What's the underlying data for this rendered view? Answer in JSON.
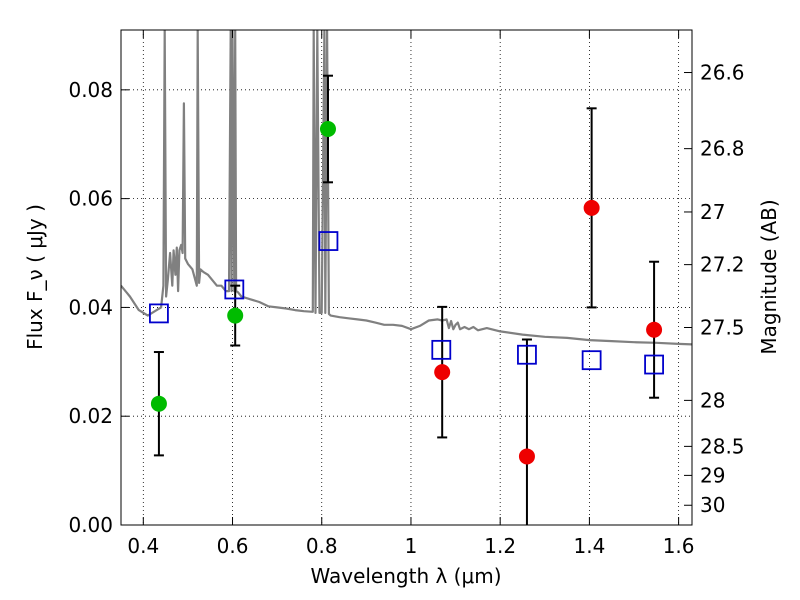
{
  "chart_data": {
    "type": "scatter",
    "xlabel": "Wavelength  λ (μm)",
    "ylabel": "Flux  F_ν  ( μJy )",
    "y2label": "Magnitude (AB)",
    "xlim": [
      0.35,
      1.63
    ],
    "ylim": [
      0.0,
      0.091
    ],
    "grid": true,
    "x_ticks": [
      0.4,
      0.6,
      0.8,
      1.0,
      1.2,
      1.4,
      1.6
    ],
    "x_tick_labels": [
      "0.4",
      "0.6",
      "0.8",
      "1",
      "1.2",
      "1.4",
      "1.6"
    ],
    "y_ticks": [
      0.0,
      0.02,
      0.04,
      0.06,
      0.08
    ],
    "y_tick_labels": [
      "0.00",
      "0.02",
      "0.04",
      "0.06",
      "0.08"
    ],
    "mag_ticks": [
      26.6,
      26.8,
      27,
      27.2,
      27.5,
      28,
      28.5,
      29,
      30
    ],
    "mag_tick_labels": [
      "26.6",
      "26.8",
      "27",
      "27.2",
      "27.5",
      "28",
      "28.5",
      "29",
      "30"
    ],
    "series": [
      {
        "kind": "points",
        "marker": "circle",
        "color": "#00bb00",
        "x": [
          0.435,
          0.606,
          0.814
        ],
        "y": [
          0.0223,
          0.0385,
          0.0728
        ],
        "yerr": [
          0.0095,
          0.0055,
          0.0098
        ]
      },
      {
        "kind": "points",
        "marker": "circle",
        "color": "#ee0000",
        "x": [
          1.07,
          1.26,
          1.405,
          1.545
        ],
        "y": [
          0.0281,
          0.0126,
          0.0583,
          0.0359
        ],
        "yerr": [
          0.012,
          0.0215,
          0.0183,
          0.0125
        ]
      },
      {
        "kind": "points",
        "marker": "square-open",
        "color": "#0000cc",
        "x": [
          0.435,
          0.604,
          0.815,
          1.068,
          1.26,
          1.405,
          1.545
        ],
        "y": [
          0.0389,
          0.0433,
          0.0522,
          0.0322,
          0.0313,
          0.0303,
          0.0295
        ]
      },
      {
        "kind": "line",
        "color": "#808080",
        "x": [
          0.35,
          0.37,
          0.39,
          0.41,
          0.43,
          0.44,
          0.445,
          0.448,
          0.451,
          0.455,
          0.46,
          0.465,
          0.468,
          0.472,
          0.475,
          0.478,
          0.481,
          0.485,
          0.488,
          0.491,
          0.494,
          0.5,
          0.51,
          0.52,
          0.522,
          0.525,
          0.528,
          0.535,
          0.545,
          0.555,
          0.565,
          0.575,
          0.585,
          0.592,
          0.596,
          0.598,
          0.6,
          0.604,
          0.606,
          0.608,
          0.612,
          0.62,
          0.64,
          0.66,
          0.68,
          0.7,
          0.72,
          0.74,
          0.76,
          0.78,
          0.782,
          0.786,
          0.79,
          0.795,
          0.8,
          0.806,
          0.808,
          0.812,
          0.816,
          0.82,
          0.84,
          0.86,
          0.88,
          0.9,
          0.92,
          0.94,
          0.96,
          0.98,
          1.0,
          1.02,
          1.04,
          1.06,
          1.07,
          1.08,
          1.085,
          1.09,
          1.095,
          1.1,
          1.105,
          1.11,
          1.12,
          1.13,
          1.14,
          1.15,
          1.17,
          1.2,
          1.25,
          1.3,
          1.35,
          1.4,
          1.45,
          1.5,
          1.55,
          1.6,
          1.63
        ],
        "y": [
          0.044,
          0.042,
          0.0395,
          0.0385,
          0.0395,
          0.04,
          0.044,
          0.091,
          0.042,
          0.045,
          0.05,
          0.044,
          0.0505,
          0.046,
          0.051,
          0.043,
          0.0505,
          0.0515,
          0.05,
          0.0775,
          0.049,
          0.048,
          0.047,
          0.044,
          0.091,
          0.0445,
          0.047,
          0.0465,
          0.046,
          0.045,
          0.044,
          0.044,
          0.043,
          0.043,
          0.091,
          0.043,
          0.091,
          0.043,
          0.091,
          0.043,
          0.0428,
          0.042,
          0.0415,
          0.041,
          0.0402,
          0.04,
          0.0398,
          0.0395,
          0.0393,
          0.0392,
          0.091,
          0.039,
          0.091,
          0.039,
          0.039,
          0.091,
          0.039,
          0.091,
          0.0388,
          0.0385,
          0.0382,
          0.038,
          0.0378,
          0.0376,
          0.0372,
          0.0368,
          0.0368,
          0.0366,
          0.036,
          0.0366,
          0.0376,
          0.0378,
          0.0376,
          0.0378,
          0.0362,
          0.0375,
          0.036,
          0.0368,
          0.0372,
          0.036,
          0.0364,
          0.036,
          0.0364,
          0.0358,
          0.0362,
          0.0356,
          0.035,
          0.0346,
          0.0344,
          0.034,
          0.0338,
          0.0336,
          0.0335,
          0.0333,
          0.0332
        ]
      }
    ]
  }
}
